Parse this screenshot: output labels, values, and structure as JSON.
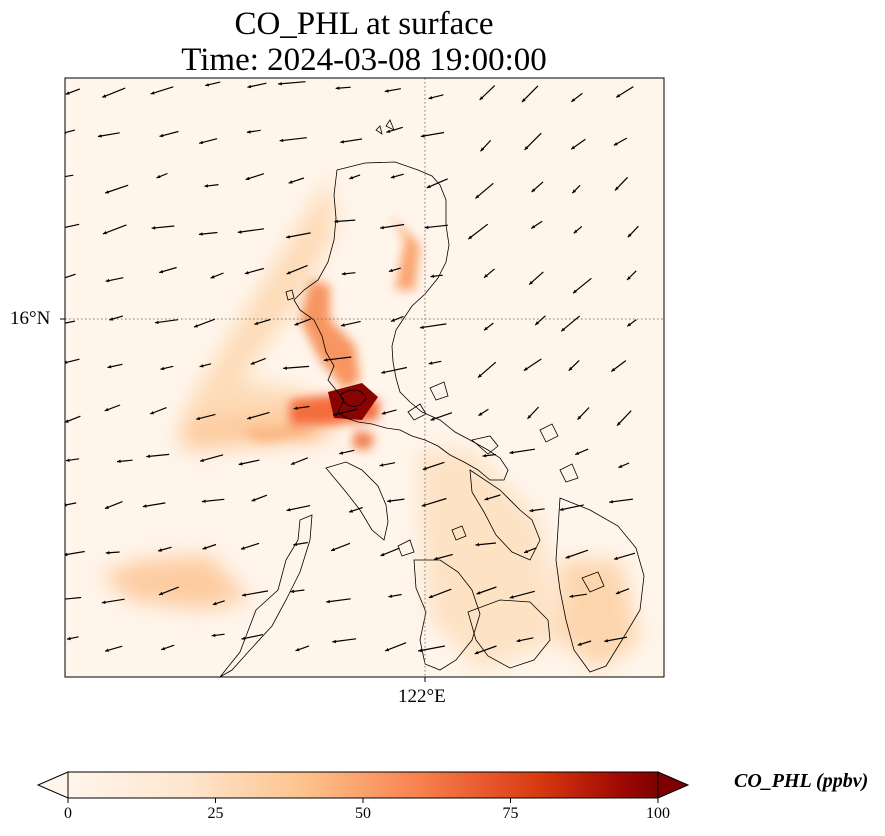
{
  "title": {
    "line1": "CO_PHL at surface",
    "line2": "Time: 2024-03-08 19:00:00"
  },
  "axes": {
    "lat_tick": "16°N",
    "lon_tick": "122°E",
    "gridlines": "dotted"
  },
  "colorbar": {
    "label": "CO_PHL (ppbv)",
    "ticks": [
      "0",
      "25",
      "50",
      "75",
      "100"
    ],
    "range": [
      0,
      100
    ],
    "extend": "both",
    "colormap_stops": [
      "#fff5eb",
      "#fdd5a8",
      "#fd9f5c",
      "#e8562b",
      "#b1110a",
      "#7f0000"
    ]
  },
  "colors": {
    "land_outline": "#000000",
    "background_low": "#fff5eb",
    "arrow": "#000000"
  },
  "map": {
    "region": "Luzon, Philippines",
    "field": "CO concentration",
    "overlay": "wind vectors"
  }
}
